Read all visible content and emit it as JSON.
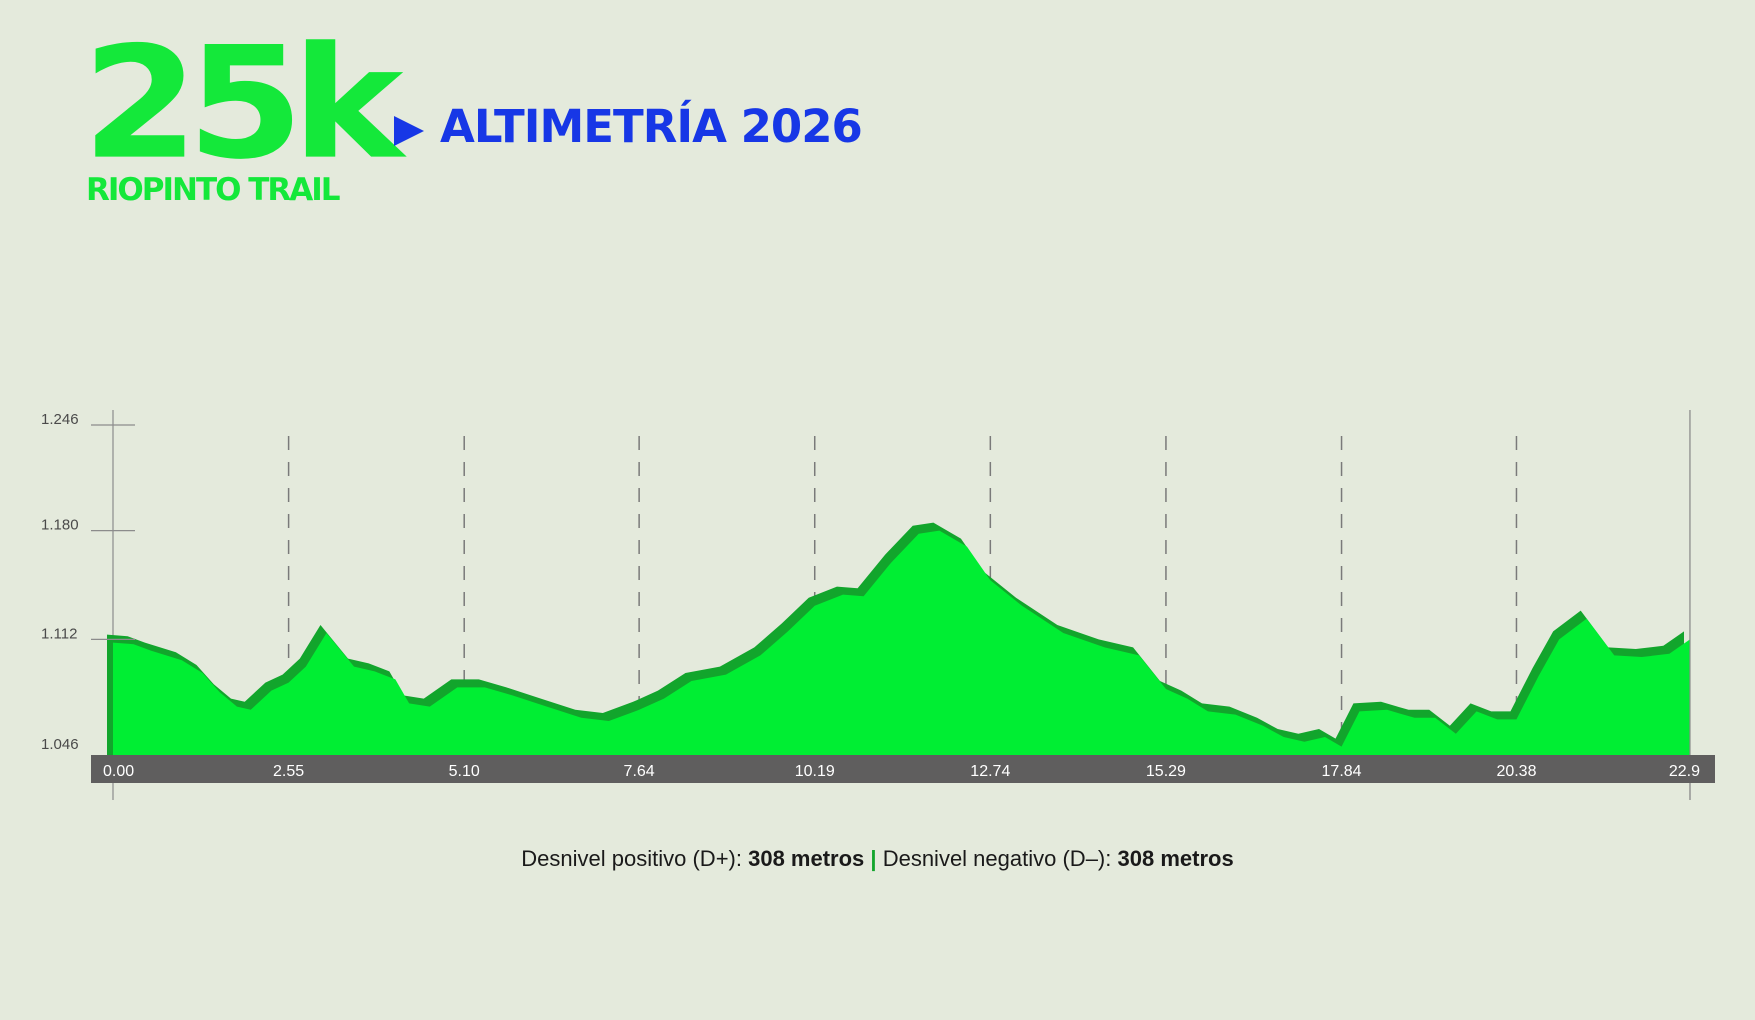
{
  "logo": {
    "big": "25k",
    "sub": "RIOPINTO TRAIL"
  },
  "title": "ALTIMETRÍA 2026",
  "colors": {
    "accent_green": "#14e83a",
    "fill_green": "#00ee33",
    "shadow_green": "#12a52c",
    "title_blue": "#1737e6",
    "axis_bar": "#5f5e5e",
    "background": "#e4eadc"
  },
  "chart_data": {
    "type": "area",
    "title": "ALTIMETRÍA 2026",
    "xlabel": "",
    "ylabel": "",
    "xlim": [
      0,
      22.9
    ],
    "ylim": [
      1046,
      1246
    ],
    "x_ticks": [
      "0.00",
      "2.55",
      "5.10",
      "7.64",
      "10.19",
      "12.74",
      "15.29",
      "17.84",
      "20.38",
      "22.9"
    ],
    "x_tick_values": [
      0,
      2.55,
      5.1,
      7.64,
      10.19,
      12.74,
      15.29,
      17.84,
      20.38,
      22.9
    ],
    "y_ticks": [
      "1.246",
      "1.180",
      "1.112",
      "1.046"
    ],
    "y_tick_values": [
      1246,
      1180,
      1112,
      1046
    ],
    "grid": "vertical dashed at x ticks",
    "series": [
      {
        "x": [
          0,
          0.3,
          0.55,
          1.0,
          1.3,
          1.55,
          1.8,
          2.0,
          2.3,
          2.55,
          2.8,
          3.1,
          3.5,
          3.8,
          4.1,
          4.3,
          4.6,
          5.0,
          5.4,
          5.8,
          6.3,
          6.8,
          7.2,
          7.64,
          8.0,
          8.4,
          8.9,
          9.4,
          9.8,
          10.19,
          10.6,
          10.9,
          11.3,
          11.7,
          12.0,
          12.4,
          12.74,
          13.2,
          13.8,
          14.4,
          14.9,
          15.29,
          15.6,
          15.9,
          16.3,
          16.7,
          17.0,
          17.3,
          17.6,
          17.84,
          18.1,
          18.5,
          18.9,
          19.2,
          19.5,
          19.8,
          20.1,
          20.38,
          20.7,
          21.0,
          21.4,
          21.8,
          22.2,
          22.6,
          22.9
        ],
        "y": [
          1115,
          1114,
          1110,
          1104,
          1096,
          1084,
          1075,
          1073,
          1085,
          1090,
          1100,
          1121,
          1100,
          1097,
          1092,
          1077,
          1075,
          1087,
          1087,
          1082,
          1075,
          1068,
          1066,
          1073,
          1080,
          1091,
          1095,
          1107,
          1122,
          1138,
          1145,
          1144,
          1165,
          1183,
          1185,
          1175,
          1154,
          1138,
          1121,
          1112,
          1107,
          1086,
          1080,
          1072,
          1070,
          1063,
          1056,
          1053,
          1056,
          1050,
          1072,
          1073,
          1068,
          1068,
          1058,
          1072,
          1067,
          1067,
          1094,
          1117,
          1130,
          1107,
          1106,
          1108,
          1117
        ]
      }
    ]
  },
  "footer": {
    "pos_label": "Desnivel positivo (D+):",
    "pos_value": "308 metros",
    "separator": "|",
    "neg_label": "Desnivel negativo (D–):",
    "neg_value": "308 metros"
  }
}
